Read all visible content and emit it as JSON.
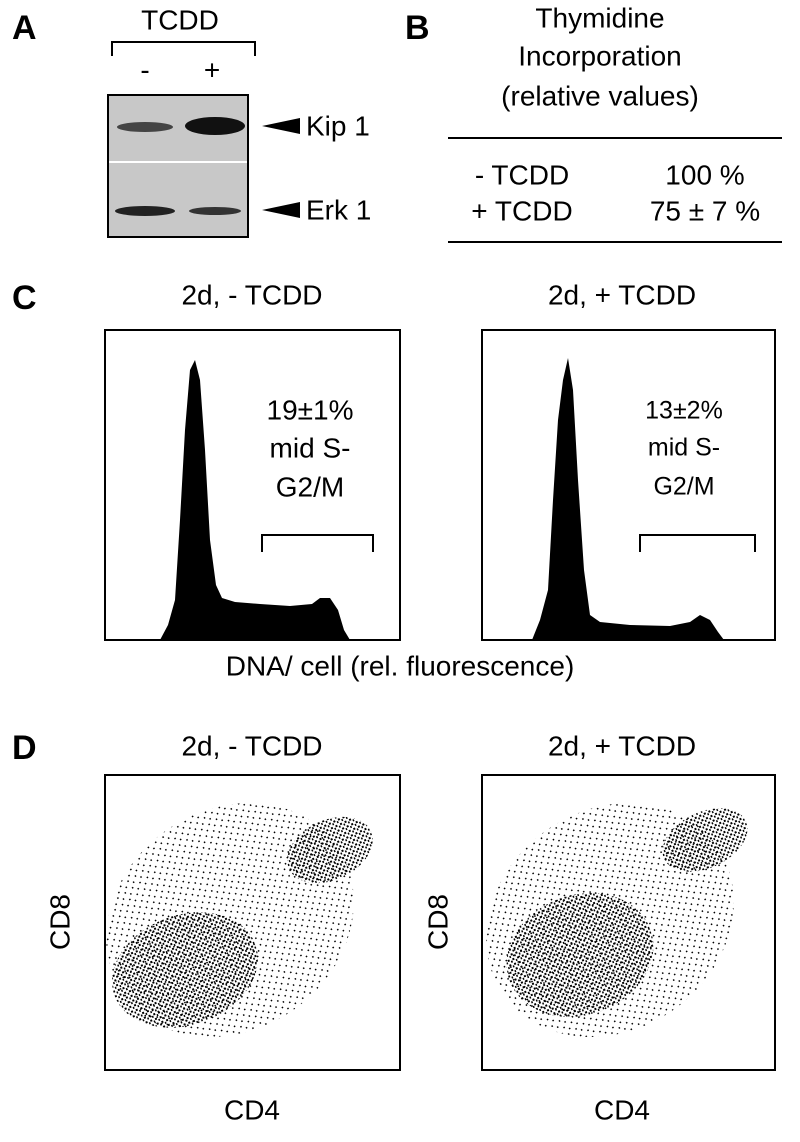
{
  "panels": {
    "a": {
      "label": "A",
      "treatment": "TCDD",
      "lanes": [
        "-",
        "+"
      ],
      "bands": [
        "Kip 1",
        "Erk 1"
      ]
    },
    "b": {
      "label": "B",
      "title": [
        "Thymidine",
        "Incorporation",
        "(relative values)"
      ],
      "rows": [
        [
          "- TCDD",
          "100 %"
        ],
        [
          "+ TCDD",
          "75 ± 7 %"
        ]
      ]
    },
    "c": {
      "label": "C",
      "plots": [
        {
          "title": "2d, - TCDD",
          "annotation": [
            "19±1%",
            "mid S-",
            "G2/M"
          ]
        },
        {
          "title": "2d, + TCDD",
          "annotation": [
            "13±2%",
            "mid S-",
            "G2/M"
          ]
        }
      ],
      "x_label": "DNA/ cell (rel. fluorescence)"
    },
    "d": {
      "label": "D",
      "plots": [
        {
          "title": "2d, - TCDD",
          "y_label": "CD8",
          "x_label": "CD4"
        },
        {
          "title": "2d, + TCDD",
          "y_label": "CD8",
          "x_label": "CD4"
        }
      ]
    }
  }
}
